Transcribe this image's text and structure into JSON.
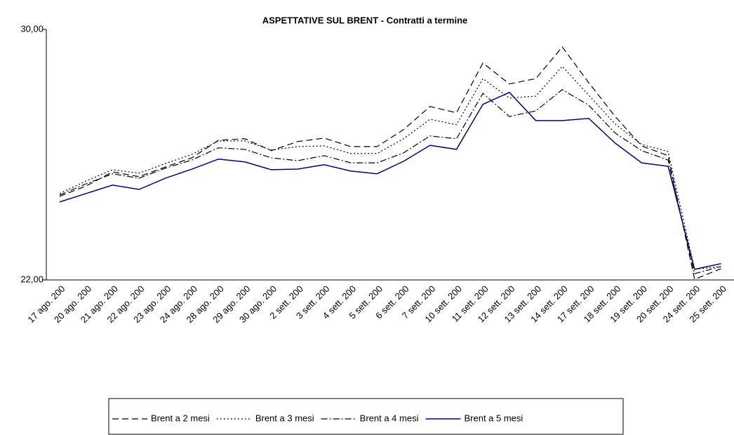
{
  "chart_data": {
    "type": "line",
    "title": "ASPETTATIVE SUL BRENT - Contratti a termine",
    "categories": [
      "17 ago. 200",
      "20 ago. 200",
      "21 ago. 200",
      "22 ago. 200",
      "23 ago. 200",
      "24 ago. 200",
      "28 ago. 200",
      "29 ago. 200",
      "30 ago. 200",
      "2 sett. 200",
      "3 sett. 200",
      "4 sett. 200",
      "5 sett. 200",
      "6 sett. 200",
      "7 sett. 200",
      "10 sett. 200",
      "11 sett. 200",
      "12 sett. 200",
      "13 sett. 200",
      "14 sett. 200",
      "17 sett. 200",
      "18 sett. 200",
      "19 sett. 200",
      "20 sett. 200",
      "24 sett. 200",
      "25 sett. 200"
    ],
    "series": [
      {
        "name": "Brent a 2 mesi",
        "color": "#000000",
        "dash": "9,5",
        "values": [
          24.67,
          25.0,
          25.45,
          25.3,
          25.61,
          25.9,
          26.46,
          26.51,
          26.13,
          26.42,
          26.53,
          26.26,
          26.26,
          26.8,
          27.54,
          27.34,
          28.93,
          28.26,
          28.43,
          29.44,
          28.3,
          27.22,
          26.28,
          25.97,
          22.02,
          22.36
        ]
      },
      {
        "name": "Brent a 3 mesi",
        "color": "#000000",
        "dash": "2,3",
        "values": [
          24.76,
          25.16,
          25.52,
          25.41,
          25.72,
          26.01,
          26.44,
          26.44,
          26.15,
          26.26,
          26.28,
          26.04,
          26.04,
          26.51,
          27.13,
          26.96,
          28.43,
          27.81,
          27.87,
          28.82,
          27.9,
          26.98,
          26.33,
          26.1,
          22.34,
          22.43
        ]
      },
      {
        "name": "Brent a 4 mesi",
        "color": "#000000",
        "dash": "9,3,2,3",
        "values": [
          24.71,
          25.07,
          25.39,
          25.25,
          25.57,
          25.83,
          26.22,
          26.17,
          25.9,
          25.81,
          25.97,
          25.74,
          25.74,
          26.06,
          26.6,
          26.51,
          27.96,
          27.22,
          27.4,
          28.08,
          27.58,
          26.69,
          26.13,
          25.83,
          22.2,
          22.43
        ]
      },
      {
        "name": "Brent a 5 mesi",
        "color": "#000080",
        "dash": "none",
        "values": [
          24.49,
          24.76,
          25.03,
          24.89,
          25.25,
          25.54,
          25.86,
          25.77,
          25.52,
          25.54,
          25.68,
          25.48,
          25.39,
          25.79,
          26.3,
          26.17,
          27.61,
          27.99,
          27.09,
          27.09,
          27.16,
          26.37,
          25.74,
          25.63,
          22.34,
          22.52
        ]
      }
    ],
    "ylim": [
      22,
      30
    ],
    "yticks": [
      {
        "value": 22,
        "label": "22,00"
      },
      {
        "value": 30,
        "label": "30,00"
      }
    ],
    "grid": false
  }
}
